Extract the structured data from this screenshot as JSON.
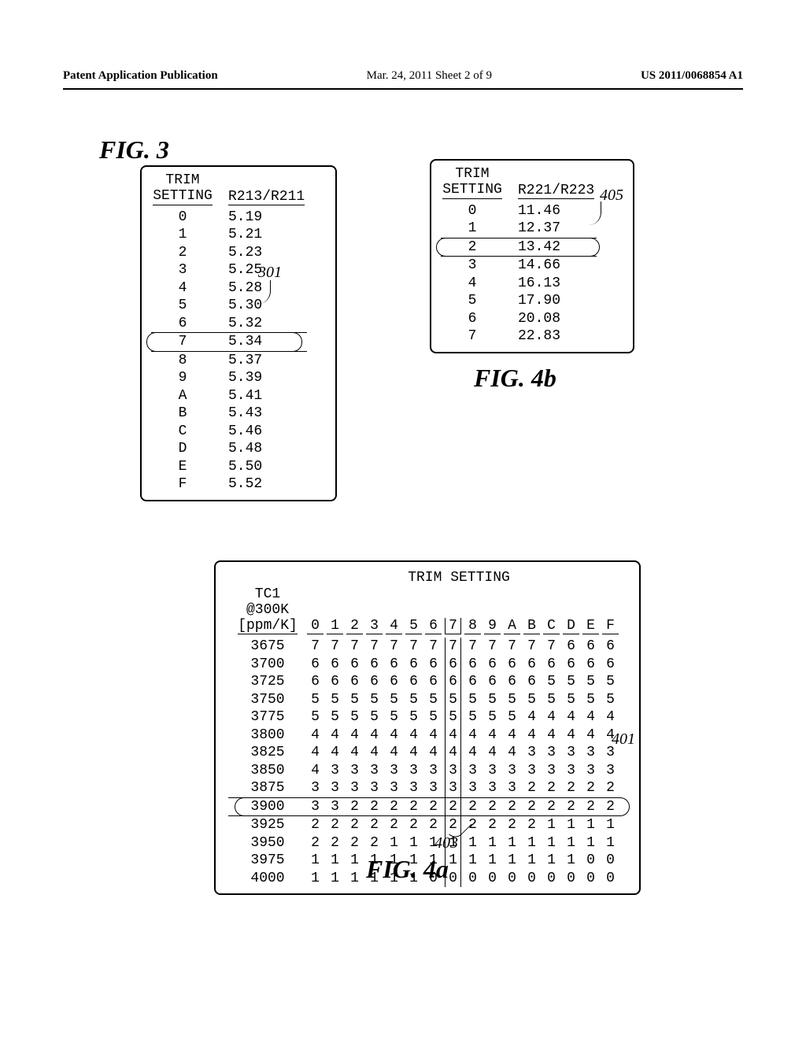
{
  "page_header": {
    "left": "Patent Application Publication",
    "mid": "Mar. 24, 2011  Sheet 2 of 9",
    "right": "US 2011/0068854 A1"
  },
  "fig3": {
    "label": "FIG. 3",
    "header_left_line1": "TRIM",
    "header_left_line2": "SETTING",
    "header_right": "R213/R211",
    "rows": [
      {
        "t": "0",
        "v": "5.19"
      },
      {
        "t": "1",
        "v": "5.21"
      },
      {
        "t": "2",
        "v": "5.23"
      },
      {
        "t": "3",
        "v": "5.25"
      },
      {
        "t": "4",
        "v": "5.28"
      },
      {
        "t": "5",
        "v": "5.30"
      },
      {
        "t": "6",
        "v": "5.32"
      },
      {
        "t": "7",
        "v": "5.34"
      },
      {
        "t": "8",
        "v": "5.37"
      },
      {
        "t": "9",
        "v": "5.39"
      },
      {
        "t": "A",
        "v": "5.41"
      },
      {
        "t": "B",
        "v": "5.43"
      },
      {
        "t": "C",
        "v": "5.46"
      },
      {
        "t": "D",
        "v": "5.48"
      },
      {
        "t": "E",
        "v": "5.50"
      },
      {
        "t": "F",
        "v": "5.52"
      }
    ],
    "circled_row_index": 7,
    "callout": "301"
  },
  "fig4b": {
    "label": "FIG. 4b",
    "header_left_line1": "TRIM",
    "header_left_line2": "SETTING",
    "header_right": "R221/R223",
    "rows": [
      {
        "t": "0",
        "v": "11.46"
      },
      {
        "t": "1",
        "v": "12.37"
      },
      {
        "t": "2",
        "v": "13.42"
      },
      {
        "t": "3",
        "v": "14.66"
      },
      {
        "t": "4",
        "v": "16.13"
      },
      {
        "t": "5",
        "v": "17.90"
      },
      {
        "t": "6",
        "v": "20.08"
      },
      {
        "t": "7",
        "v": "22.83"
      }
    ],
    "circled_row_index": 2,
    "callout": "405"
  },
  "fig4a": {
    "label": "FIG. 4a",
    "title": "TRIM SETTING",
    "left_header_line1": "TC1",
    "left_header_line2": "@300K",
    "left_header_line3": "[ppm/K]",
    "columns": [
      "0",
      "1",
      "2",
      "3",
      "4",
      "5",
      "6",
      "7",
      "8",
      "9",
      "A",
      "B",
      "C",
      "D",
      "E",
      "F"
    ],
    "boxed_col_index": 7,
    "circled_row_index": 9,
    "callout_401": "401",
    "callout_403": "403",
    "rows": [
      {
        "l": "3675",
        "c": [
          "7",
          "7",
          "7",
          "7",
          "7",
          "7",
          "7",
          "7",
          "7",
          "7",
          "7",
          "7",
          "7",
          "6",
          "6",
          "6"
        ]
      },
      {
        "l": "3700",
        "c": [
          "6",
          "6",
          "6",
          "6",
          "6",
          "6",
          "6",
          "6",
          "6",
          "6",
          "6",
          "6",
          "6",
          "6",
          "6",
          "6"
        ]
      },
      {
        "l": "3725",
        "c": [
          "6",
          "6",
          "6",
          "6",
          "6",
          "6",
          "6",
          "6",
          "6",
          "6",
          "6",
          "6",
          "5",
          "5",
          "5",
          "5"
        ]
      },
      {
        "l": "3750",
        "c": [
          "5",
          "5",
          "5",
          "5",
          "5",
          "5",
          "5",
          "5",
          "5",
          "5",
          "5",
          "5",
          "5",
          "5",
          "5",
          "5"
        ]
      },
      {
        "l": "3775",
        "c": [
          "5",
          "5",
          "5",
          "5",
          "5",
          "5",
          "5",
          "5",
          "5",
          "5",
          "5",
          "4",
          "4",
          "4",
          "4",
          "4"
        ]
      },
      {
        "l": "3800",
        "c": [
          "4",
          "4",
          "4",
          "4",
          "4",
          "4",
          "4",
          "4",
          "4",
          "4",
          "4",
          "4",
          "4",
          "4",
          "4",
          "4"
        ]
      },
      {
        "l": "3825",
        "c": [
          "4",
          "4",
          "4",
          "4",
          "4",
          "4",
          "4",
          "4",
          "4",
          "4",
          "4",
          "3",
          "3",
          "3",
          "3",
          "3"
        ]
      },
      {
        "l": "3850",
        "c": [
          "4",
          "3",
          "3",
          "3",
          "3",
          "3",
          "3",
          "3",
          "3",
          "3",
          "3",
          "3",
          "3",
          "3",
          "3",
          "3"
        ]
      },
      {
        "l": "3875",
        "c": [
          "3",
          "3",
          "3",
          "3",
          "3",
          "3",
          "3",
          "3",
          "3",
          "3",
          "3",
          "2",
          "2",
          "2",
          "2",
          "2"
        ]
      },
      {
        "l": "3900",
        "c": [
          "3",
          "3",
          "2",
          "2",
          "2",
          "2",
          "2",
          "2",
          "2",
          "2",
          "2",
          "2",
          "2",
          "2",
          "2",
          "2"
        ]
      },
      {
        "l": "3925",
        "c": [
          "2",
          "2",
          "2",
          "2",
          "2",
          "2",
          "2",
          "2",
          "2",
          "2",
          "2",
          "2",
          "1",
          "1",
          "1",
          "1"
        ]
      },
      {
        "l": "3950",
        "c": [
          "2",
          "2",
          "2",
          "2",
          "1",
          "1",
          "1",
          "1",
          "1",
          "1",
          "1",
          "1",
          "1",
          "1",
          "1",
          "1"
        ]
      },
      {
        "l": "3975",
        "c": [
          "1",
          "1",
          "1",
          "1",
          "1",
          "1",
          "1",
          "1",
          "1",
          "1",
          "1",
          "1",
          "1",
          "1",
          "0",
          "0"
        ]
      },
      {
        "l": "4000",
        "c": [
          "1",
          "1",
          "1",
          "1",
          "1",
          "1",
          "0",
          "0",
          "0",
          "0",
          "0",
          "0",
          "0",
          "0",
          "0",
          "0"
        ]
      }
    ]
  }
}
